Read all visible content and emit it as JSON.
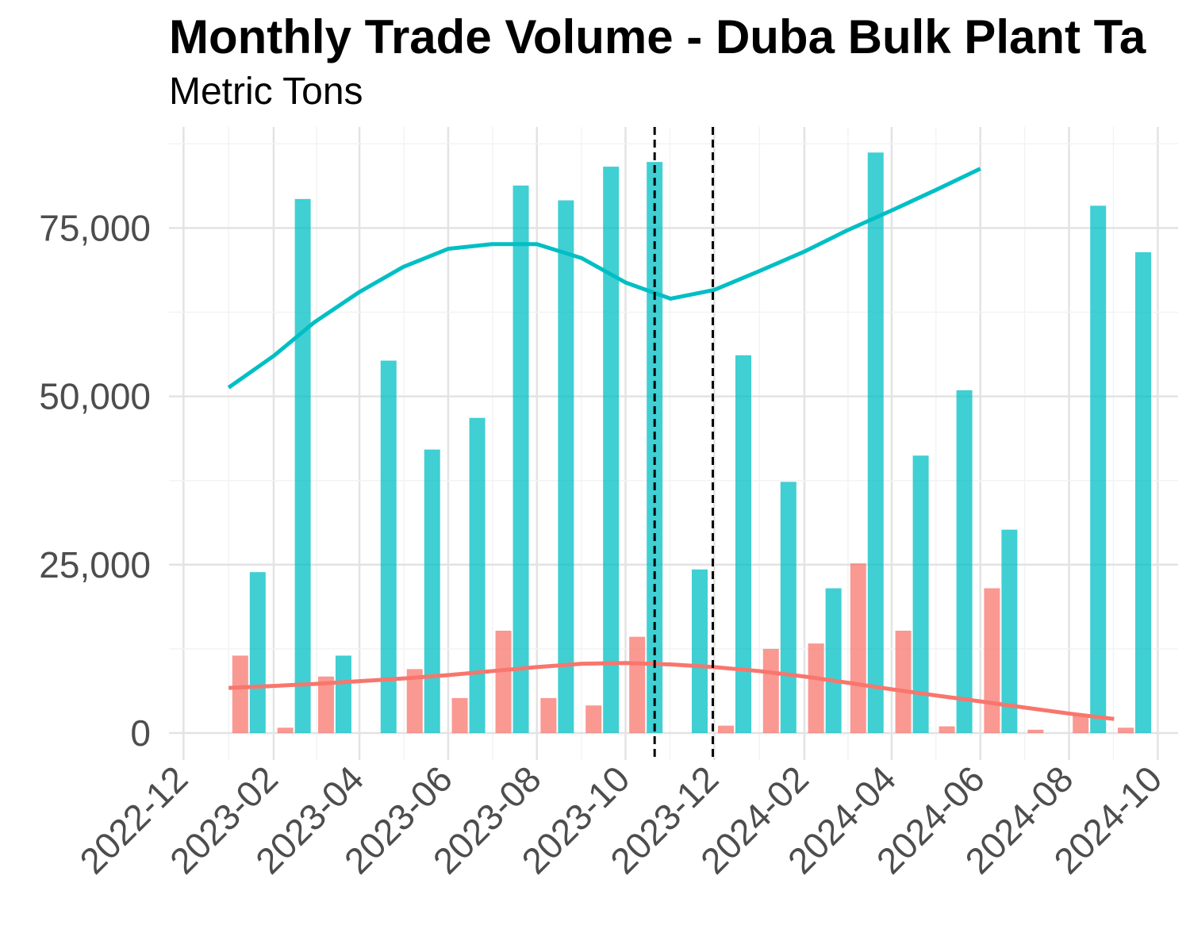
{
  "chart_data": {
    "type": "bar",
    "title": "Monthly Trade Volume - Duba Bulk Plant Ta",
    "subtitle": "Metric Tons",
    "xlabel": "",
    "ylabel": "",
    "ylim": [
      -4000,
      90000
    ],
    "y_ticks": [
      0,
      25000,
      50000,
      75000
    ],
    "y_tick_labels": [
      "0",
      "25,000",
      "50,000",
      "75,000"
    ],
    "x_ticks": [
      "2022-12-01",
      "2023-02-01",
      "2023-04-01",
      "2023-06-01",
      "2023-08-01",
      "2023-10-01",
      "2023-12-01",
      "2024-02-01",
      "2024-04-01",
      "2024-06-01",
      "2024-08-01",
      "2024-10-01"
    ],
    "x_tick_labels": [
      "2022-12",
      "2023-02",
      "2023-04",
      "2023-06",
      "2023-08",
      "2023-10",
      "2023-12",
      "2024-02",
      "2024-04",
      "2024-06",
      "2024-08",
      "2024-10"
    ],
    "xlim": [
      "2022-11-21",
      "2024-10-15"
    ],
    "categories": [
      "2023-01",
      "2023-02",
      "2023-03",
      "2023-04",
      "2023-05",
      "2023-06",
      "2023-07",
      "2023-08",
      "2023-09",
      "2023-10",
      "2023-11",
      "2023-12",
      "2024-01",
      "2024-02",
      "2024-03",
      "2024-04",
      "2024-05",
      "2024-06",
      "2024-07",
      "2024-08",
      "2024-09"
    ],
    "series": [
      {
        "color": "#F8766D",
        "values": [
          11500,
          800,
          8400,
          0,
          9500,
          5200,
          15200,
          5200,
          4100,
          14300,
          0,
          1100,
          12500,
          13300,
          25200,
          15200,
          1000,
          21500,
          500,
          2700,
          800
        ],
        "trend": [
          6700,
          7000,
          7300,
          7700,
          8100,
          8600,
          9200,
          9800,
          10300,
          10400,
          10200,
          9800,
          9200,
          8400,
          7500,
          6500,
          5600,
          4700,
          3800,
          2900,
          2100
        ]
      },
      {
        "color": "#00BFC4",
        "values": [
          23900,
          79300,
          11500,
          55300,
          42100,
          46800,
          81300,
          79100,
          84100,
          84800,
          24300,
          56100,
          37300,
          21500,
          86200,
          41200,
          50900,
          30200,
          0,
          78300,
          71400
        ],
        "trend": [
          51300,
          56000,
          61000,
          65500,
          69200,
          71900,
          72600,
          72600,
          70500,
          66900,
          64500,
          65800,
          68600,
          71500,
          74600,
          77600,
          80600,
          83800,
          0,
          0,
          0
        ]
      }
    ],
    "vlines": [
      "2023-10-21",
      "2023-11-30"
    ],
    "grid": true,
    "legend": "none"
  }
}
